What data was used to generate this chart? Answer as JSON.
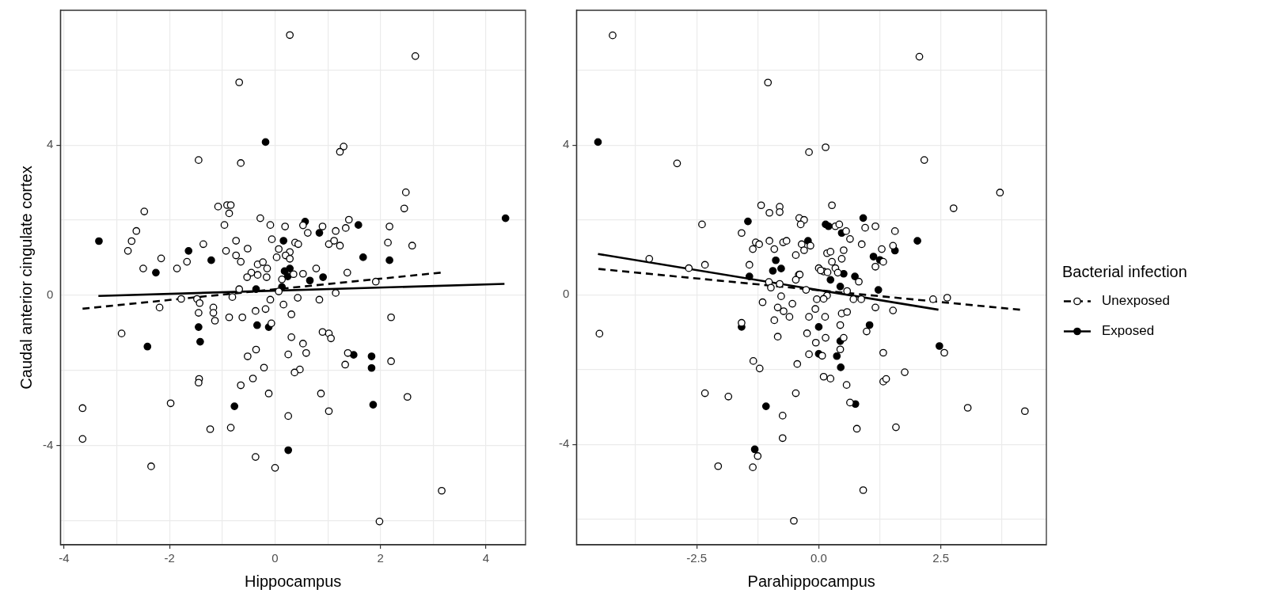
{
  "chart_data": [
    {
      "type": "scatter",
      "xlabel": "Hippocampus",
      "ylabel": "Caudal anterior cingulate cortex",
      "xlim": [
        -4.07,
        4.75
      ],
      "ylim": [
        -6.65,
        7.59
      ],
      "xticks": [
        -4,
        {
          "value": -3,
          "label": null
        },
        -2,
        {
          "value": -1,
          "label": null
        },
        0,
        {
          "value": 1,
          "label": null
        },
        2,
        {
          "value": 3,
          "label": null
        },
        4
      ],
      "yticks": [
        {
          "value": -6,
          "label": null
        },
        -4,
        {
          "value": -2,
          "label": null
        },
        0,
        {
          "value": 2,
          "label": null
        },
        4,
        {
          "value": 6,
          "label": null
        }
      ],
      "grid": true,
      "legend": false,
      "series": [
        {
          "type": "scatter",
          "color": "#ffffff",
          "marker": "circle",
          "x": [
            0.28,
            2.66,
            -0.68,
            -1.45,
            -0.65,
            1.3,
            1.23,
            2.48,
            2.45,
            -2.48,
            -1.08,
            -0.91,
            -0.84,
            -0.87,
            -0.28,
            -0.96,
            -2.63,
            -2.72,
            -2.79,
            -1.36,
            -0.74,
            -0.93,
            -0.52,
            -0.74,
            -0.65,
            -2.16,
            -1.67,
            -1.86,
            -2.5,
            -0.09,
            0.19,
            0.53,
            0.9,
            0.62,
            1.4,
            1.34,
            1.15,
            2.17,
            2.14,
            2.6,
            -0.06,
            0.38,
            0.44,
            0.07,
            0.28,
            0.2,
            0.03,
            0.28,
            1.02,
            1.12,
            1.23,
            0.78,
            1.37,
            0.53,
            -0.33,
            -0.23,
            -0.15,
            -0.45,
            -0.53,
            -0.33,
            -0.16,
            0.35,
            0.13,
            -0.68,
            1.91,
            0.07,
            1.15,
            -0.81,
            -1.78,
            -1.48,
            -1.43,
            -2.19,
            -1.17,
            -1.17,
            -1.45,
            -1.14,
            -0.87,
            -0.62,
            -0.37,
            -0.18,
            -0.09,
            0.16,
            0.43,
            0.84,
            0.31,
            2.2,
            -0.07,
            -2.91,
            0.31,
            0.53,
            0.9,
            1.02,
            1.06,
            -0.36,
            -0.52,
            0.25,
            0.59,
            1.38,
            1.33,
            2.2,
            -0.21,
            0.47,
            0.37,
            -1.44,
            -1.45,
            -0.42,
            -0.65,
            -0.12,
            0.87,
            2.51,
            1.02,
            0.25,
            -1.98,
            -3.65,
            -3.65,
            -1.23,
            -0.84,
            -0.37,
            0.0,
            -2.35,
            3.16,
            1.98
          ],
          "values": [
            6.93,
            6.37,
            5.67,
            3.6,
            3.52,
            3.96,
            3.82,
            2.74,
            2.31,
            2.23,
            2.36,
            2.4,
            2.4,
            2.18,
            2.05,
            1.87,
            1.71,
            1.44,
            1.18,
            1.36,
            1.45,
            1.18,
            1.24,
            1.06,
            0.89,
            0.98,
            0.89,
            0.71,
            0.71,
            1.87,
            1.83,
            1.86,
            1.83,
            1.66,
            2.01,
            1.79,
            1.71,
            1.83,
            1.4,
            1.32,
            1.49,
            1.4,
            1.36,
            1.23,
            1.15,
            1.06,
            1.01,
            0.97,
            1.36,
            1.45,
            1.32,
            0.71,
            0.6,
            0.57,
            0.82,
            0.88,
            0.71,
            0.6,
            0.48,
            0.54,
            0.48,
            0.56,
            0.42,
            0.16,
            0.36,
            0.1,
            0.06,
            -0.05,
            -0.1,
            -0.1,
            -0.21,
            -0.33,
            -0.33,
            -0.47,
            -0.47,
            -0.68,
            -0.59,
            -0.59,
            -0.42,
            -0.37,
            -0.12,
            -0.25,
            -0.07,
            -0.12,
            -0.51,
            -0.59,
            -0.75,
            -1.02,
            -1.12,
            -1.29,
            -0.98,
            -1.02,
            -1.15,
            -1.45,
            -1.63,
            -1.58,
            -1.54,
            -1.54,
            -1.85,
            -1.76,
            -1.93,
            -1.98,
            -2.06,
            -2.23,
            -2.33,
            -2.22,
            -2.4,
            -2.62,
            -2.62,
            -2.71,
            -3.09,
            -3.22,
            -2.88,
            -3.01,
            -3.83,
            -3.57,
            -3.53,
            -4.31,
            -4.6,
            -4.56,
            -5.21,
            -6.03
          ]
        },
        {
          "type": "scatter",
          "color": "#000000",
          "marker": "circle",
          "x": [
            -0.18,
            4.37,
            -3.34,
            -1.64,
            -1.21,
            -2.26,
            0.57,
            0.84,
            1.58,
            1.67,
            2.17,
            0.16,
            0.18,
            0.28,
            0.24,
            0.91,
            0.66,
            0.13,
            -0.36,
            -1.45,
            -0.34,
            -0.12,
            -2.42,
            -1.42,
            1.49,
            1.83,
            1.83,
            -0.77,
            1.86,
            0.25
          ],
          "values": [
            4.08,
            2.05,
            1.44,
            1.18,
            0.93,
            0.6,
            1.96,
            1.66,
            1.87,
            1.01,
            0.93,
            1.45,
            0.64,
            0.71,
            0.5,
            0.48,
            0.39,
            0.22,
            0.16,
            -0.85,
            -0.8,
            -0.85,
            -1.37,
            -1.24,
            -1.59,
            -1.63,
            -1.94,
            -2.96,
            -2.92,
            -4.13
          ]
        },
        {
          "type": "line",
          "color": "#000000",
          "line_style": "dashed",
          "marker": "none",
          "x": [
            -3.65,
            3.14
          ],
          "values": [
            -0.36,
            0.6
          ]
        },
        {
          "type": "line",
          "color": "#000000",
          "line_style": "solid",
          "marker": "none",
          "x": [
            -3.35,
            4.35
          ],
          "values": [
            -0.02,
            0.3
          ]
        }
      ]
    },
    {
      "type": "scatter",
      "xlabel": "Parahippocampus",
      "legend_title": "Bacterial infection",
      "xlim": [
        -4.96,
        4.66
      ],
      "ylim": [
        -6.68,
        7.6
      ],
      "xticks": [
        {
          "value": -3.75,
          "label": null
        },
        -2.5,
        {
          "value": -1.25,
          "label": null
        },
        {
          "value": 0,
          "label": "0.0"
        },
        {
          "value": 1.25,
          "label": null
        },
        2.5,
        {
          "value": 3.75,
          "label": null
        }
      ],
      "yticks": [
        {
          "value": -6,
          "label": null
        },
        -4,
        {
          "value": -2,
          "label": null
        },
        0,
        {
          "value": 2,
          "label": null
        },
        4,
        {
          "value": 6,
          "label": null
        }
      ],
      "grid": true,
      "legend": "right",
      "series": [
        {
          "name": "Unexposed",
          "type": "scatter",
          "color": "#ffffff",
          "marker": "circle",
          "x": [
            -4.22,
            2.06,
            -1.04,
            -2.9,
            -0.2,
            0.14,
            2.16,
            3.71,
            2.76,
            -1.18,
            -1.01,
            -0.8,
            -0.8,
            0.27,
            -2.39,
            -1.58,
            -0.4,
            -0.3,
            -0.37,
            0.34,
            0.42,
            0.95,
            1.16,
            0.56,
            1.56,
            0.64,
            -1.29,
            -1.22,
            -1.01,
            -0.73,
            -0.66,
            -0.35,
            -0.17,
            -1.35,
            -0.91,
            -0.3,
            -0.47,
            0.88,
            1.52,
            1.29,
            0.17,
            0.24,
            0.51,
            0.47,
            0.27,
            1.32,
            1.16,
            -1.42,
            -2.33,
            -2.66,
            -3.47,
            0.0,
            0.1,
            0.34,
            0.39,
            -0.41,
            -0.39,
            -0.47,
            -1.02,
            -0.98,
            -0.8,
            0.04,
            0.18,
            0.82,
            -0.26,
            0.58,
            0.17,
            0.1,
            -0.04,
            -0.77,
            -1.15,
            -0.54,
            0.71,
            0.87,
            2.34,
            2.63,
            1.16,
            1.52,
            -0.84,
            -0.72,
            -0.6,
            -0.91,
            -0.07,
            -0.2,
            0.13,
            0.47,
            0.58,
            0.44,
            0.98,
            -1.58,
            -4.49,
            -0.84,
            -0.24,
            0.14,
            -0.06,
            0.51,
            0.44,
            0.07,
            -0.2,
            1.32,
            2.57,
            -1.34,
            -1.21,
            -0.44,
            1.76,
            0.1,
            0.24,
            1.32,
            1.38,
            0.57,
            -2.33,
            -1.85,
            -0.47,
            0.64,
            -0.74,
            3.05,
            4.22,
            0.78,
            1.58,
            -0.74,
            -1.25,
            -2.06,
            -1.35,
            0.91,
            -0.51
          ],
          "values": [
            6.93,
            6.36,
            5.67,
            3.51,
            3.81,
            3.94,
            3.6,
            2.73,
            2.31,
            2.39,
            2.19,
            2.35,
            2.21,
            2.39,
            1.88,
            1.65,
            2.05,
            2.0,
            1.88,
            1.83,
            1.88,
            1.79,
            1.83,
            1.7,
            1.7,
            1.49,
            1.4,
            1.35,
            1.44,
            1.4,
            1.44,
            1.35,
            1.31,
            1.22,
            1.22,
            1.19,
            1.06,
            1.35,
            1.31,
            1.22,
            1.11,
            1.15,
            1.19,
            0.96,
            0.88,
            0.88,
            0.75,
            0.8,
            0.8,
            0.71,
            0.96,
            0.71,
            0.62,
            0.71,
            0.59,
            0.53,
            0.54,
            0.4,
            0.34,
            0.19,
            0.29,
            0.65,
            0.6,
            0.35,
            0.13,
            0.1,
            -0.02,
            -0.11,
            -0.12,
            -0.04,
            -0.2,
            -0.24,
            -0.12,
            -0.12,
            -0.12,
            -0.08,
            -0.34,
            -0.42,
            -0.34,
            -0.44,
            -0.59,
            -0.68,
            -0.38,
            -0.59,
            -0.59,
            -0.5,
            -0.46,
            -0.81,
            -0.98,
            -0.75,
            -1.04,
            -1.12,
            -1.03,
            -1.15,
            -1.28,
            -1.15,
            -1.46,
            -1.63,
            -1.59,
            -1.55,
            -1.55,
            -1.77,
            -1.97,
            -1.85,
            -2.07,
            -2.19,
            -2.24,
            -2.32,
            -2.25,
            -2.41,
            -2.63,
            -2.72,
            -2.63,
            -2.88,
            -3.23,
            -3.02,
            -3.11,
            -3.58,
            -3.54,
            -3.83,
            -4.31,
            -4.58,
            -4.61,
            -5.22,
            -6.04
          ]
        },
        {
          "name": "Exposed",
          "type": "scatter",
          "color": "#000000",
          "marker": "circle",
          "x": [
            -4.52,
            -1.45,
            0.91,
            0.14,
            0.2,
            0.47,
            2.02,
            -0.22,
            1.56,
            1.12,
            1.25,
            -0.88,
            -0.94,
            -0.77,
            0.51,
            0.74,
            -1.42,
            0.24,
            0.44,
            1.22,
            0.0,
            1.04,
            -1.58,
            0.44,
            0.0,
            0.37,
            2.47,
            0.45,
            -1.08,
            0.75,
            -1.31
          ],
          "values": [
            4.08,
            1.96,
            2.05,
            1.88,
            1.83,
            1.65,
            1.44,
            1.44,
            1.18,
            1.02,
            0.93,
            0.92,
            0.64,
            0.7,
            0.56,
            0.49,
            0.49,
            0.4,
            0.22,
            0.13,
            -0.86,
            -0.81,
            -0.86,
            -1.24,
            -1.58,
            -1.64,
            -1.37,
            -1.94,
            -2.98,
            -2.92,
            -4.13
          ]
        },
        {
          "type": "line",
          "color": "#000000",
          "line_style": "dashed",
          "marker": "none",
          "x": [
            -4.51,
            4.12
          ],
          "values": [
            0.69,
            -0.4
          ]
        },
        {
          "type": "line",
          "color": "#000000",
          "line_style": "solid",
          "marker": "none",
          "x": [
            -4.52,
            2.45
          ],
          "values": [
            1.09,
            -0.4
          ]
        }
      ]
    }
  ]
}
